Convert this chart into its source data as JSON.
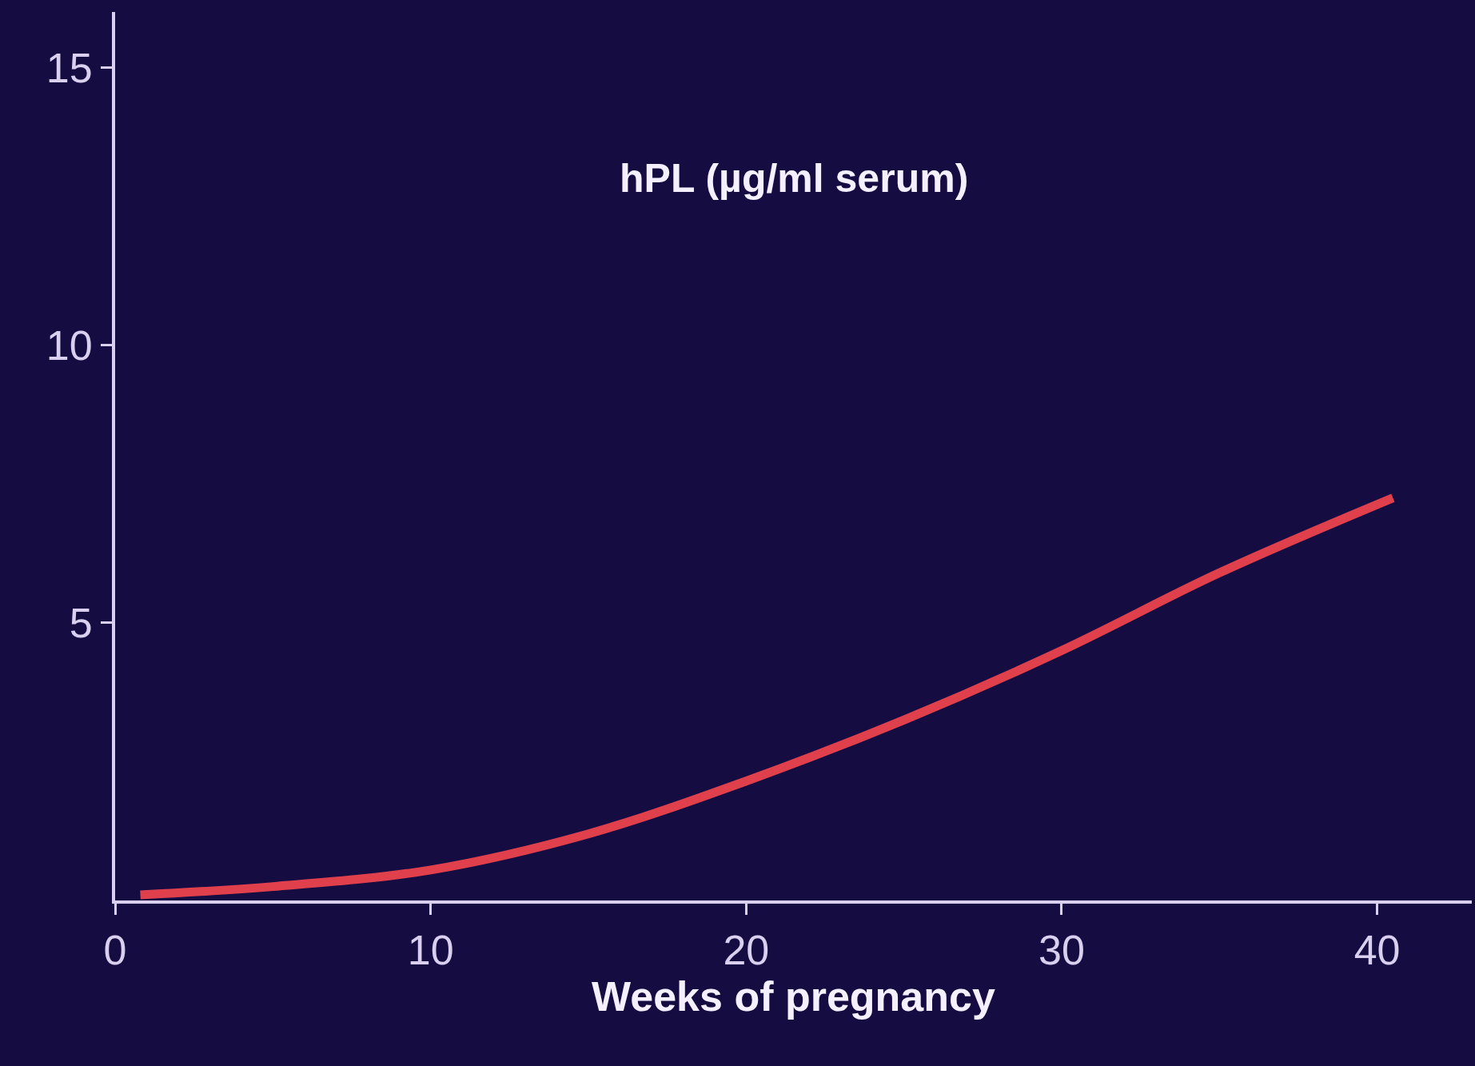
{
  "chart_data": {
    "type": "line",
    "title": "hPL (µg/ml serum)",
    "xlabel": "Weeks of pregnancy",
    "x": [
      0.8,
      5,
      10,
      15,
      20,
      25,
      30,
      35,
      40.5
    ],
    "series": [
      {
        "color": "#e0404c",
        "values": [
          0.1,
          0.25,
          0.55,
          1.2,
          2.15,
          3.25,
          4.5,
          5.9,
          7.25
        ]
      }
    ],
    "xlim": [
      0,
      43
    ],
    "ylim": [
      0,
      16
    ],
    "xticks": [
      0,
      10,
      20,
      30,
      40
    ],
    "yticks": [
      5,
      10,
      15
    ],
    "grid": false,
    "marker": "none",
    "line_style": "solid"
  }
}
